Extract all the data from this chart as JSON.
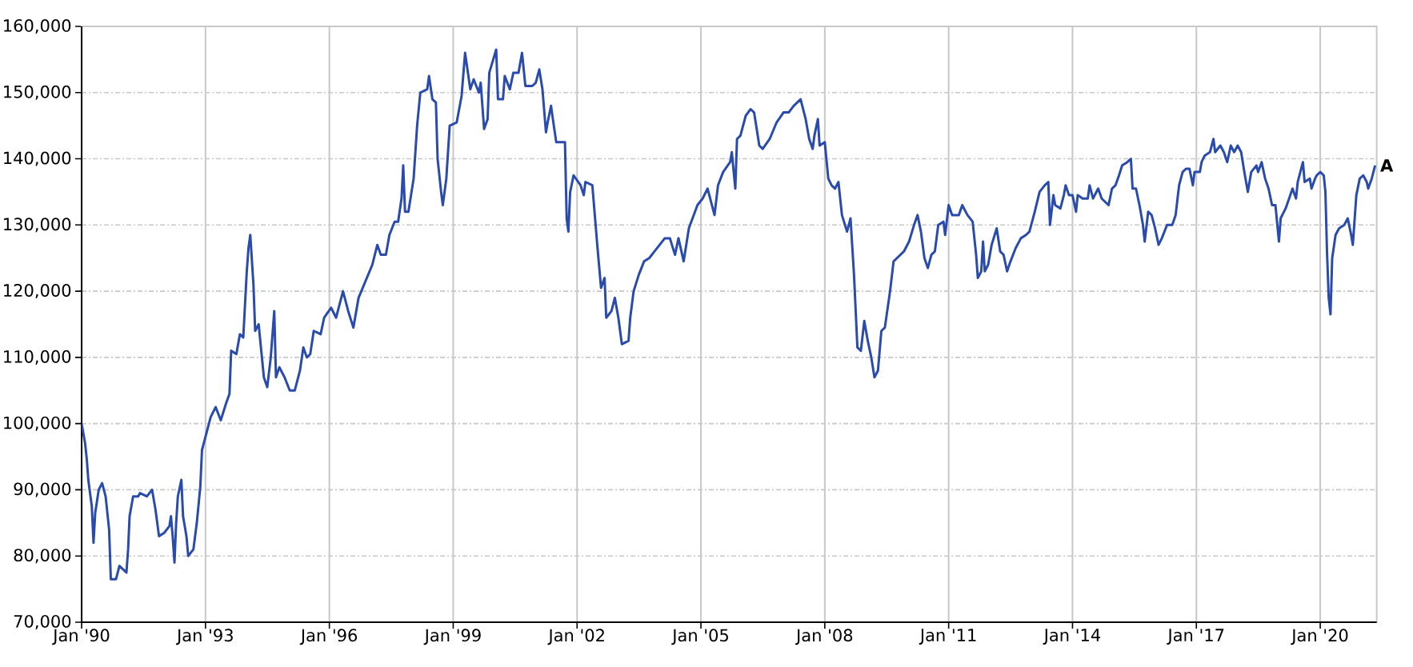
{
  "chart_data": {
    "type": "line",
    "color": "#2a4bae",
    "grid": true,
    "xlim": [
      "1990-01-01",
      "2021-05-15"
    ],
    "ylim": [
      70000,
      160000
    ],
    "xticks": [
      {
        "value": "1990-01",
        "label": "Jan '90"
      },
      {
        "value": "1993-01",
        "label": "Jan '93"
      },
      {
        "value": "1996-01",
        "label": "Jan '96"
      },
      {
        "value": "1999-01",
        "label": "Jan '99"
      },
      {
        "value": "2002-01",
        "label": "Jan '02"
      },
      {
        "value": "2005-01",
        "label": "Jan '05"
      },
      {
        "value": "2008-01",
        "label": "Jan '08"
      },
      {
        "value": "2011-01",
        "label": "Jan '11"
      },
      {
        "value": "2014-01",
        "label": "Jan '14"
      },
      {
        "value": "2017-01",
        "label": "Jan '17"
      },
      {
        "value": "2020-01",
        "label": "Jan '20"
      }
    ],
    "yticks": [
      {
        "value": 70000,
        "label": "70,000"
      },
      {
        "value": 80000,
        "label": "80,000"
      },
      {
        "value": 90000,
        "label": "90,000"
      },
      {
        "value": 100000,
        "label": "100,000"
      },
      {
        "value": 110000,
        "label": "110,000"
      },
      {
        "value": 120000,
        "label": "120,000"
      },
      {
        "value": 130000,
        "label": "130,000"
      },
      {
        "value": 140000,
        "label": "140,000"
      },
      {
        "value": 150000,
        "label": "150,000"
      },
      {
        "value": 160000,
        "label": "160,000"
      }
    ],
    "annotations": [
      {
        "text": "A",
        "x": "2021-05-01",
        "y": 139000
      }
    ],
    "x": [
      "1990-01-01",
      "1990-02-01",
      "1990-02-16",
      "1990-03-01",
      "1990-04-01",
      "1990-04-16",
      "1990-05-01",
      "1990-06-01",
      "1990-07-01",
      "1990-08-01",
      "1990-09-01",
      "1990-09-16",
      "1990-11-01",
      "1990-12-01",
      "1991-02-01",
      "1991-02-16",
      "1991-03-01",
      "1991-04-01",
      "1991-05-16",
      "1991-06-01",
      "1991-08-01",
      "1991-09-16",
      "1991-10-16",
      "1991-11-16",
      "1992-01-01",
      "1992-02-16",
      "1992-03-01",
      "1992-03-16",
      "1992-04-01",
      "1992-04-16",
      "1992-05-01",
      "1992-06-01",
      "1992-06-16",
      "1992-07-16",
      "1992-08-01",
      "1992-09-16",
      "1992-10-16",
      "1992-11-16",
      "1992-12-01",
      "1993-01-01",
      "1993-02-16",
      "1993-04-01",
      "1993-05-16",
      "1993-07-01",
      "1993-08-01",
      "1993-08-16",
      "1993-10-01",
      "1993-11-01",
      "1993-12-01",
      "1994-01-01",
      "1994-01-16",
      "1994-02-01",
      "1994-03-01",
      "1994-03-16",
      "1994-04-16",
      "1994-06-01",
      "1994-07-01",
      "1994-08-01",
      "1994-09-01",
      "1994-09-16",
      "1994-10-16",
      "1994-12-01",
      "1995-01-16",
      "1995-03-01",
      "1995-04-16",
      "1995-05-16",
      "1995-06-16",
      "1995-07-16",
      "1995-08-16",
      "1995-10-16",
      "1995-11-16",
      "1996-01-16",
      "1996-03-01",
      "1996-05-01",
      "1996-06-16",
      "1996-08-01",
      "1996-09-16",
      "1996-11-16",
      "1997-01-16",
      "1997-03-01",
      "1997-04-01",
      "1997-05-16",
      "1997-06-16",
      "1997-08-01",
      "1997-09-01",
      "1997-10-01",
      "1997-10-16",
      "1997-11-01",
      "1997-12-01",
      "1998-01-16",
      "1998-02-16",
      "1998-03-16",
      "1998-05-16",
      "1998-06-01",
      "1998-07-01",
      "1998-08-01",
      "1998-08-16",
      "1998-09-16",
      "1998-10-01",
      "1998-11-01",
      "1998-12-01",
      "1999-02-01",
      "1999-03-16",
      "1999-04-16",
      "1999-06-01",
      "1999-07-01",
      "1999-08-16",
      "1999-09-01",
      "1999-10-01",
      "1999-11-01",
      "1999-11-16",
      "2000-01-16",
      "2000-02-01",
      "2000-03-16",
      "2000-04-01",
      "2000-05-16",
      "2000-06-16",
      "2000-08-01",
      "2000-09-01",
      "2000-10-01",
      "2000-12-01",
      "2001-01-01",
      "2001-02-01",
      "2001-03-01",
      "2001-04-01",
      "2001-04-16",
      "2001-05-16",
      "2001-06-01",
      "2001-07-01",
      "2001-09-16",
      "2001-10-01",
      "2001-10-16",
      "2001-11-01",
      "2001-12-01",
      "2002-02-01",
      "2002-03-01",
      "2002-03-16",
      "2002-05-16",
      "2002-07-01",
      "2002-08-01",
      "2002-09-01",
      "2002-09-16",
      "2002-11-01",
      "2002-12-01",
      "2003-01-01",
      "2003-02-01",
      "2003-04-01",
      "2003-04-16",
      "2003-05-16",
      "2003-07-01",
      "2003-08-16",
      "2003-10-01",
      "2003-11-16",
      "2004-01-01",
      "2004-02-16",
      "2004-04-01",
      "2004-05-16",
      "2004-06-16",
      "2004-08-01",
      "2004-09-16",
      "2004-12-01",
      "2005-01-16",
      "2005-03-01",
      "2005-05-01",
      "2005-06-01",
      "2005-07-16",
      "2005-09-16",
      "2005-10-01",
      "2005-11-01",
      "2005-11-16",
      "2005-12-16",
      "2006-02-01",
      "2006-03-16",
      "2006-04-16",
      "2006-06-01",
      "2006-07-01",
      "2006-09-01",
      "2006-11-01",
      "2007-01-01",
      "2007-02-16",
      "2007-04-01",
      "2007-06-01",
      "2007-07-16",
      "2007-08-16",
      "2007-09-16",
      "2007-10-01",
      "2007-11-01",
      "2007-11-16",
      "2008-01-01",
      "2008-02-01",
      "2008-03-01",
      "2008-04-01",
      "2008-05-01",
      "2008-06-01",
      "2008-07-16",
      "2008-08-16",
      "2008-09-16",
      "2008-10-16",
      "2008-11-16",
      "2008-12-16",
      "2009-01-16",
      "2009-02-16",
      "2009-03-16",
      "2009-04-16",
      "2009-05-16",
      "2009-06-16",
      "2009-08-01",
      "2009-09-01",
      "2009-10-01",
      "2009-12-01",
      "2010-01-16",
      "2010-03-01",
      "2010-04-01",
      "2010-05-01",
      "2010-06-01",
      "2010-07-01",
      "2010-08-01",
      "2010-09-01",
      "2010-10-01",
      "2010-11-16",
      "2010-12-01",
      "2011-01-01",
      "2011-02-01",
      "2011-04-01",
      "2011-05-01",
      "2011-06-16",
      "2011-08-01",
      "2011-09-01",
      "2011-09-16",
      "2011-10-16",
      "2011-11-01",
      "2011-11-16",
      "2011-12-16",
      "2012-01-16",
      "2012-03-01",
      "2012-04-01",
      "2012-05-01",
      "2012-06-01",
      "2012-07-01",
      "2012-08-16",
      "2012-10-01",
      "2012-11-16",
      "2012-12-16",
      "2013-02-01",
      "2013-03-16",
      "2013-05-01",
      "2013-06-01",
      "2013-06-16",
      "2013-07-16",
      "2013-08-01",
      "2013-09-16",
      "2013-10-16",
      "2013-11-01",
      "2013-12-01",
      "2014-01-01",
      "2014-02-01",
      "2014-02-16",
      "2014-04-01",
      "2014-05-16",
      "2014-06-01",
      "2014-07-01",
      "2014-08-16",
      "2014-09-16",
      "2014-11-16",
      "2014-12-16",
      "2015-01-16",
      "2015-02-16",
      "2015-03-16",
      "2015-05-01",
      "2015-06-01",
      "2015-06-16",
      "2015-07-16",
      "2015-08-16",
      "2015-09-16",
      "2015-10-01",
      "2015-11-01",
      "2015-12-01",
      "2016-01-01",
      "2016-02-01",
      "2016-03-01",
      "2016-04-16",
      "2016-06-01",
      "2016-07-01",
      "2016-08-01",
      "2016-09-01",
      "2016-10-01",
      "2016-11-01",
      "2016-12-01",
      "2016-12-16",
      "2017-02-01",
      "2017-02-16",
      "2017-03-16",
      "2017-05-01",
      "2017-06-01",
      "2017-06-16",
      "2017-08-01",
      "2017-09-01",
      "2017-10-01",
      "2017-11-01",
      "2017-12-01",
      "2018-01-01",
      "2018-02-01",
      "2018-03-01",
      "2018-04-01",
      "2018-05-01",
      "2018-06-16",
      "2018-07-01",
      "2018-08-01",
      "2018-09-01",
      "2018-10-01",
      "2018-11-01",
      "2018-12-01",
      "2019-01-01",
      "2019-01-16",
      "2019-03-01",
      "2019-04-01",
      "2019-05-01",
      "2019-06-01",
      "2019-06-16",
      "2019-08-01",
      "2019-08-16",
      "2019-10-01",
      "2019-10-16",
      "2019-11-16",
      "2019-12-01",
      "2020-01-01",
      "2020-02-01",
      "2020-02-16",
      "2020-03-01",
      "2020-03-16",
      "2020-04-01",
      "2020-04-16",
      "2020-05-16",
      "2020-06-16",
      "2020-08-01",
      "2020-09-01",
      "2020-10-01",
      "2020-10-16",
      "2020-11-16",
      "2020-12-16",
      "2021-01-16",
      "2021-02-16",
      "2021-03-01",
      "2021-04-01",
      "2021-05-01"
    ],
    "values": [
      100000,
      97000,
      94500,
      91500,
      87500,
      82000,
      86500,
      90000,
      91000,
      89000,
      84000,
      76500,
      76500,
      78500,
      77500,
      81000,
      86000,
      89000,
      89000,
      89500,
      89000,
      90000,
      87000,
      83000,
      83500,
      84500,
      86000,
      83000,
      79000,
      85000,
      89000,
      91500,
      86000,
      83000,
      80000,
      81000,
      85000,
      90500,
      96000,
      98000,
      101000,
      102500,
      100500,
      103000,
      104500,
      111000,
      110500,
      113500,
      113000,
      123000,
      126500,
      128500,
      121000,
      114000,
      115000,
      107000,
      105500,
      110000,
      117000,
      107000,
      108500,
      107000,
      105000,
      105000,
      108000,
      111500,
      110000,
      110500,
      114000,
      113500,
      116000,
      117500,
      116000,
      120000,
      117000,
      114500,
      119000,
      121500,
      124000,
      127000,
      125500,
      125500,
      128500,
      130500,
      130500,
      134000,
      139000,
      132000,
      132000,
      137000,
      145000,
      150000,
      150500,
      152500,
      149000,
      148500,
      140000,
      135000,
      133000,
      137000,
      145000,
      145500,
      149500,
      156000,
      150500,
      152000,
      150000,
      151500,
      144500,
      146000,
      153000,
      156500,
      149000,
      149000,
      152500,
      150500,
      153000,
      153000,
      156000,
      151000,
      151000,
      151500,
      153500,
      150500,
      144000,
      145500,
      148000,
      146000,
      142500,
      142500,
      131000,
      129000,
      135000,
      137500,
      136000,
      134500,
      136500,
      136000,
      126500,
      120500,
      122000,
      116000,
      117000,
      119000,
      116000,
      112000,
      112500,
      116000,
      120000,
      122500,
      124500,
      125000,
      126000,
      127000,
      128000,
      128000,
      125500,
      128000,
      124500,
      129500,
      133000,
      134000,
      135500,
      131500,
      136000,
      138000,
      139500,
      141000,
      135500,
      143000,
      143500,
      146500,
      147500,
      147000,
      142000,
      141500,
      143000,
      145500,
      147000,
      147000,
      148000,
      149000,
      146000,
      143000,
      141500,
      143500,
      146000,
      142000,
      142500,
      137000,
      136000,
      135500,
      136500,
      131500,
      129000,
      131000,
      122500,
      111500,
      111000,
      115500,
      112500,
      110000,
      107000,
      108000,
      114000,
      114500,
      120000,
      124500,
      125000,
      126000,
      127500,
      130000,
      131500,
      129000,
      125000,
      123500,
      125500,
      126000,
      130000,
      130500,
      128500,
      133000,
      131500,
      131500,
      133000,
      131500,
      130500,
      125500,
      122000,
      123000,
      127500,
      123000,
      124000,
      127000,
      129500,
      126000,
      125500,
      123000,
      124500,
      126500,
      128000,
      128500,
      129000,
      132000,
      135000,
      136000,
      136500,
      130000,
      134500,
      133000,
      132500,
      134500,
      136000,
      134500,
      134500,
      132000,
      134500,
      134000,
      134000,
      136000,
      134000,
      135500,
      134000,
      133000,
      135500,
      136000,
      137500,
      139000,
      139500,
      140000,
      135500,
      135500,
      133000,
      130000,
      127500,
      132000,
      131500,
      129500,
      127000,
      128000,
      130000,
      130000,
      131500,
      136000,
      138000,
      138500,
      138500,
      136000,
      138000,
      138000,
      139500,
      140500,
      141000,
      143000,
      141000,
      142000,
      141000,
      139500,
      142000,
      141000,
      142000,
      141000,
      138000,
      135000,
      138000,
      139000,
      138000,
      139500,
      137000,
      135500,
      133000,
      133000,
      127500,
      131000,
      132500,
      134000,
      135500,
      134000,
      136500,
      139500,
      136500,
      137000,
      135500,
      137000,
      137500,
      138000,
      137500,
      135000,
      126000,
      119000,
      116500,
      125000,
      128500,
      129500,
      130000,
      131000,
      128500,
      127000,
      134500,
      137000,
      137500,
      136500,
      135500,
      137000,
      139000
    ]
  }
}
